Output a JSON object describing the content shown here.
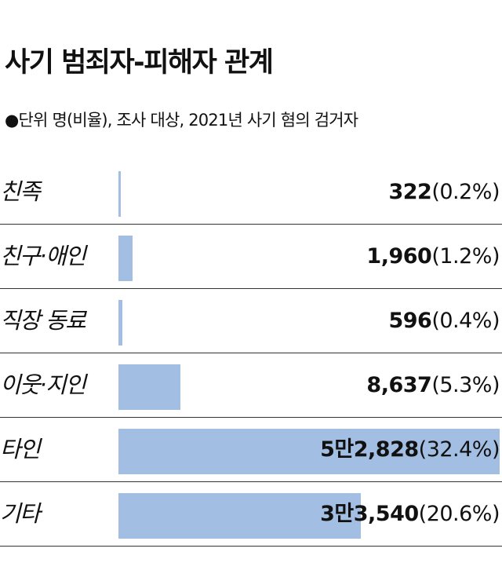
{
  "chart_data": {
    "type": "bar",
    "title": "사기 범죄자-피해자 관계",
    "subtitle": "●단위  명(비율), 조사 대상, 2021년 사기 혐의 검거자",
    "categories": [
      "친족",
      "친구·애인",
      "직장 동료",
      "이웃·지인",
      "타인",
      "기타"
    ],
    "values": [
      322,
      1960,
      596,
      8637,
      52828,
      33540
    ],
    "value_labels": [
      "322",
      "1,960",
      "596",
      "8,637",
      "5만2,828",
      "3만3,540"
    ],
    "percent_labels": [
      "(0.2%)",
      "(1.2%)",
      "(0.4%)",
      "(5.3%)",
      "(32.4%)",
      "(20.6%)"
    ],
    "percents": [
      0.2,
      1.2,
      0.4,
      5.3,
      32.4,
      20.6
    ],
    "xlim": [
      0,
      52828
    ],
    "bar_color": "#a3bee3"
  }
}
